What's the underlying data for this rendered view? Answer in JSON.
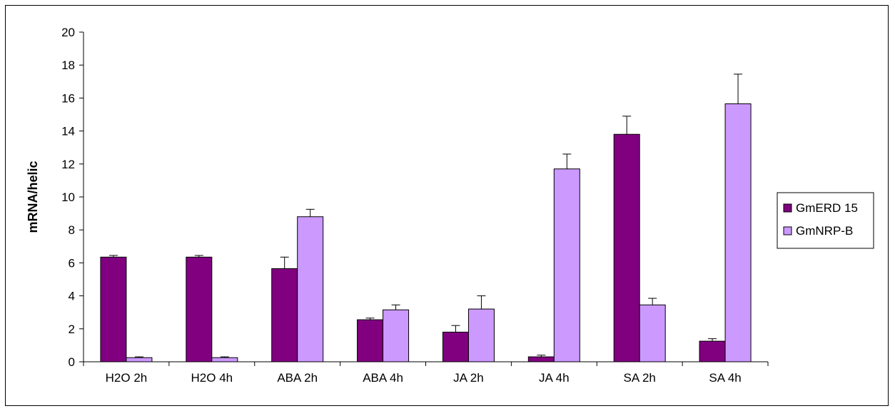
{
  "chart_data": {
    "type": "bar",
    "title": "",
    "xlabel": "",
    "ylabel": "mRNA/helic",
    "ylim": [
      0,
      20
    ],
    "yticks": [
      0,
      2,
      4,
      6,
      8,
      10,
      12,
      14,
      16,
      18,
      20
    ],
    "categories": [
      "H2O 2h",
      "H2O 4h",
      "ABA 2h",
      "ABA 4h",
      "JA 2h",
      "JA 4h",
      "SA 2h",
      "SA 4h"
    ],
    "series": [
      {
        "name": "GmERD 15",
        "color": "#800080",
        "values": [
          6.35,
          6.35,
          5.65,
          2.55,
          1.8,
          0.3,
          13.8,
          1.25
        ],
        "errors": [
          0.1,
          0.1,
          0.7,
          0.1,
          0.4,
          0.1,
          1.1,
          0.15
        ]
      },
      {
        "name": "GmNRP-B",
        "color": "#CC99FF",
        "values": [
          0.25,
          0.25,
          8.8,
          3.15,
          3.2,
          11.7,
          3.45,
          15.65
        ],
        "errors": [
          0.05,
          0.05,
          0.45,
          0.3,
          0.8,
          0.9,
          0.4,
          1.8
        ]
      }
    ],
    "legend": "right",
    "grid": false
  }
}
